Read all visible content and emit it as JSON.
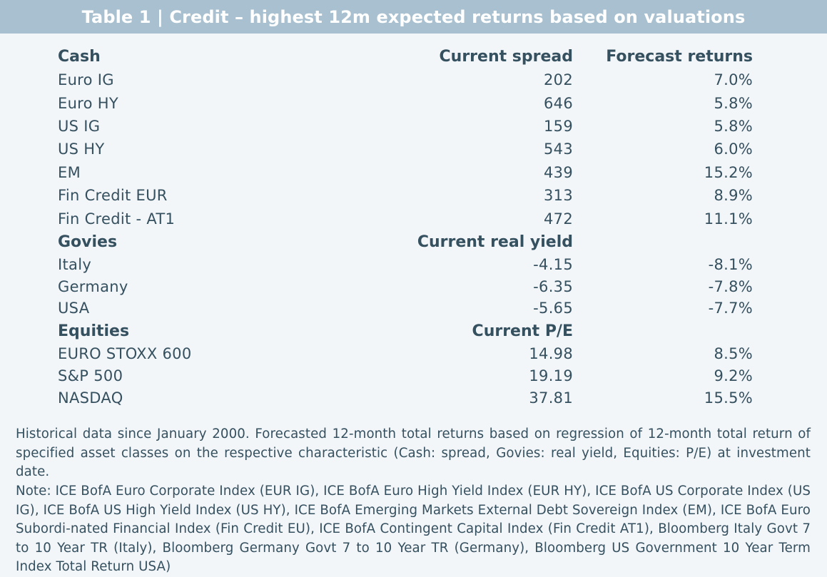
{
  "title": "Table 1 | Credit – highest 12m expected returns based on valuations",
  "sections": [
    {
      "name": "Cash",
      "metric_label": "Current spread",
      "returns_label": "Forecast returns",
      "rows": [
        {
          "label": "Euro IG",
          "metric": "202",
          "return": "7.0%"
        },
        {
          "label": "Euro HY",
          "metric": "646",
          "return": "5.8%"
        },
        {
          "label": "US IG",
          "metric": "159",
          "return": "5.8%"
        },
        {
          "label": "US HY",
          "metric": "543",
          "return": "6.0%"
        },
        {
          "label": "EM",
          "metric": "439",
          "return": "15.2%"
        },
        {
          "label": "Fin Credit EUR",
          "metric": "313",
          "return": "8.9%"
        },
        {
          "label": "Fin Credit - AT1",
          "metric": "472",
          "return": "11.1%"
        }
      ]
    },
    {
      "name": "Govies",
      "metric_label": "Current real yield",
      "returns_label": "",
      "rows": [
        {
          "label": "Italy",
          "metric": "-4.15",
          "return": "-8.1%"
        },
        {
          "label": "Germany",
          "metric": "-6.35",
          "return": "-7.8%"
        },
        {
          "label": "USA",
          "metric": "-5.65",
          "return": "-7.7%"
        }
      ]
    },
    {
      "name": "Equities",
      "metric_label": "Current P/E",
      "returns_label": "",
      "rows": [
        {
          "label": "EURO STOXX 600",
          "metric": "14.98",
          "return": "8.5%"
        },
        {
          "label": "S&P 500",
          "metric": "19.19",
          "return": "9.2%"
        },
        {
          "label": "NASDAQ",
          "metric": "37.81",
          "return": "15.5%"
        }
      ]
    }
  ],
  "footnote": "Historical data since January 2000. Forecasted 12-month total returns based on regression of 12-month total return of specified asset classes on the respective characteristic (Cash: spread, Govies: real yield, Equities: P/E) at investment date.",
  "note": "Note: ICE BofA Euro Corporate Index (EUR IG), ICE BofA Euro High Yield Index (EUR HY), ICE BofA US Corporate Index (US IG), ICE BofA US High Yield Index (US HY), ICE BofA Emerging Markets External Debt Sovereign Index (EM), ICE BofA Euro Subordi-nated Financial Index (Fin Credit EU), ICE BofA Contingent Capital Index (Fin Credit AT1), Bloomberg Italy Govt 7 to 10 Year TR (Italy), Bloomberg Germany Govt 7 to 10 Year TR (Germany),  Bloomberg US Government 10 Year Term Index Total Return USA)",
  "colors": {
    "header_bg": "#a8c0cf",
    "page_bg": "#f3f6f9",
    "text": "#35505f"
  }
}
